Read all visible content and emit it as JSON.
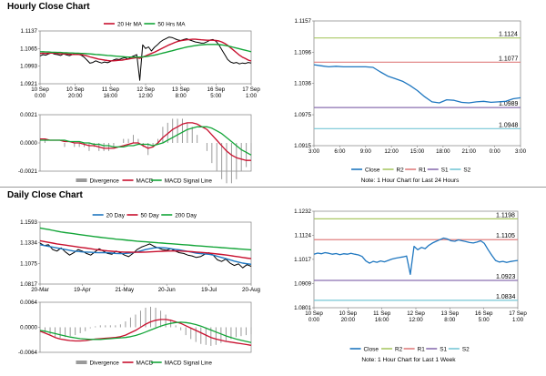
{
  "hourly_title": "Hourly Close Chart",
  "daily_title": "Daily Close Chart",
  "colors": {
    "close": "#1f77c0",
    "ma_short": "#c8102e",
    "ma_long": "#13a538",
    "r2": "#a9c865",
    "r1": "#e07f7f",
    "s1": "#8a6fb0",
    "s2": "#76c7d6",
    "divergence": "#9a9a9a",
    "frame": "#7f7f7f",
    "black": "#000000"
  },
  "chart_data": [
    {
      "id": "hourly-price",
      "type": "line",
      "legend": [
        "20 Hr MA",
        "50 Hrs MA"
      ],
      "yticks": [
        "1.1137",
        "1.1065",
        "1.0993",
        "1.0921"
      ],
      "ylim": [
        1.0921,
        1.1137
      ],
      "xticks": [
        "10 Sep\n0:00",
        "10 Sep\n20:00",
        "11 Sep\n16:00",
        "12 Sep\n12:00",
        "13 Sep\n8:00",
        "16 Sep\n5:00",
        "17 Sep\n1:00"
      ],
      "series": [
        {
          "name": "close",
          "values": [
            1.1035,
            1.104,
            1.1038,
            1.1044,
            1.1047,
            1.1042,
            1.104,
            1.1037,
            1.1043,
            1.1039,
            1.1036,
            1.104,
            1.1045,
            1.1042,
            1.1038,
            1.103,
            1.1018,
            1.1005,
            1.1008,
            1.1015,
            1.101,
            1.1006,
            1.101,
            1.1007,
            1.1012,
            1.1018,
            1.1022,
            1.102,
            1.1025,
            1.1028,
            1.1022,
            1.103,
            1.1035,
            1.104,
            1.0935,
            1.108,
            1.1065,
            1.1072,
            1.1055,
            1.107,
            1.108,
            1.1092,
            1.11,
            1.1106,
            1.1112,
            1.111,
            1.1105,
            1.11,
            1.1098,
            1.1102,
            1.1105,
            1.11,
            1.1096,
            1.1092,
            1.109,
            1.1087,
            1.1088,
            1.1093,
            1.11,
            1.1102,
            1.1095,
            1.108,
            1.106,
            1.104,
            1.102,
            1.101,
            1.1005,
            1.1008,
            1.1002,
            1.1006,
            1.1004,
            1.1008,
            1.1006
          ]
        },
        {
          "name": "20 Hr MA",
          "values": [
            1.1045,
            1.1046,
            1.1045,
            1.1046,
            1.1047,
            1.1046,
            1.1045,
            1.1044,
            1.1044,
            1.1043,
            1.1042,
            1.1041,
            1.1041,
            1.1041,
            1.104,
            1.1038,
            1.1035,
            1.1031,
            1.1028,
            1.1025,
            1.1022,
            1.102,
            1.1018,
            1.1016,
            1.1015,
            1.1015,
            1.1016,
            1.1017,
            1.1018,
            1.102,
            1.1022,
            1.1024,
            1.1026,
            1.1028,
            1.1025,
            1.103,
            1.1035,
            1.104,
            1.1045,
            1.105,
            1.1056,
            1.1062,
            1.1068,
            1.1074,
            1.108,
            1.1085,
            1.109,
            1.1094,
            1.1097,
            1.1099,
            1.1101,
            1.1102,
            1.1103,
            1.1103,
            1.1102,
            1.1101,
            1.11,
            1.1099,
            1.1099,
            1.1099,
            1.1098,
            1.1096,
            1.1092,
            1.1086,
            1.1078,
            1.1068,
            1.1058,
            1.1048,
            1.1038,
            1.103,
            1.1024,
            1.1018,
            1.1014
          ]
        },
        {
          "name": "50 Hrs MA",
          "values": [
            1.1052,
            1.1052,
            1.1051,
            1.1051,
            1.105,
            1.105,
            1.1049,
            1.1049,
            1.1048,
            1.1048,
            1.1047,
            1.1047,
            1.1046,
            1.1046,
            1.1045,
            1.1045,
            1.1044,
            1.1043,
            1.1042,
            1.1041,
            1.104,
            1.1039,
            1.1038,
            1.1037,
            1.1036,
            1.1035,
            1.1034,
            1.1033,
            1.1032,
            1.1031,
            1.103,
            1.103,
            1.103,
            1.103,
            1.103,
            1.1031,
            1.1032,
            1.1034,
            1.1036,
            1.1038,
            1.1041,
            1.1044,
            1.1047,
            1.105,
            1.1053,
            1.1056,
            1.1059,
            1.1062,
            1.1065,
            1.1068,
            1.1071,
            1.1073,
            1.1075,
            1.1077,
            1.1079,
            1.108,
            1.1081,
            1.1082,
            1.1082,
            1.1082,
            1.1082,
            1.1081,
            1.108,
            1.1078,
            1.1076,
            1.1073,
            1.107,
            1.1067,
            1.1064,
            1.1061,
            1.1058,
            1.1055,
            1.1052
          ]
        }
      ]
    },
    {
      "id": "hourly-macd",
      "type": "bar",
      "legend": [
        "Divergence",
        "MACD",
        "MACD Signal Line"
      ],
      "yticks": [
        "0.0021",
        "0.0000",
        "-0.0021"
      ],
      "ylim": [
        -0.0021,
        0.0021
      ],
      "series": [
        {
          "name": "MACD",
          "values": [
            0.0003,
            0.0003,
            0.0002,
            0.0002,
            0.0002,
            0.0001,
            0.0001,
            0.0,
            0.0,
            -0.0001,
            -0.0002,
            -0.0002,
            -0.0003,
            -0.0004,
            -0.0004,
            -0.0004,
            -0.0003,
            -0.0002,
            -0.0001,
            0.0,
            0.0,
            -0.0002,
            -0.0004,
            -0.0003,
            0.0,
            0.0004,
            0.0007,
            0.001,
            0.0012,
            0.0014,
            0.0015,
            0.0015,
            0.0014,
            0.0012,
            0.001,
            0.0006,
            0.0002,
            -0.0002,
            -0.0006,
            -0.0009,
            -0.0011,
            -0.0012,
            -0.0013,
            -0.0013
          ]
        },
        {
          "name": "MACD Signal Line",
          "values": [
            0.0002,
            0.0002,
            0.0002,
            0.0002,
            0.0002,
            0.0002,
            0.0001,
            0.0001,
            0.0001,
            0.0,
            0.0,
            -0.0001,
            -0.0001,
            -0.0002,
            -0.0002,
            -0.0003,
            -0.0003,
            -0.0003,
            -0.0002,
            -0.0002,
            -0.0001,
            -0.0001,
            -0.0001,
            -0.0002,
            -0.0001,
            0.0,
            0.0002,
            0.0004,
            0.0006,
            0.0008,
            0.001,
            0.0011,
            0.0012,
            0.0012,
            0.0012,
            0.0011,
            0.0009,
            0.0007,
            0.0004,
            0.0001,
            -0.0002,
            -0.0005,
            -0.0007,
            -0.0009
          ]
        }
      ]
    },
    {
      "id": "hourly-24h",
      "type": "line",
      "yticks": [
        "1.1157",
        "1.1096",
        "1.1036",
        "1.0975",
        "1.0915"
      ],
      "ylim": [
        1.0915,
        1.1157
      ],
      "xticks": [
        "3:00",
        "6:00",
        "9:00",
        "12:00",
        "15:00",
        "18:00",
        "21:00",
        "0:00",
        "3:00"
      ],
      "levels": [
        {
          "name": "R2",
          "value": 1.1124,
          "label": "1.1124"
        },
        {
          "name": "R1",
          "value": 1.1077,
          "label": "1.1077"
        },
        {
          "name": "S1",
          "value": 1.0989,
          "label": "1.0989"
        },
        {
          "name": "S2",
          "value": 1.0948,
          "label": "1.0948"
        }
      ],
      "series": [
        {
          "name": "Close",
          "values": [
            1.1072,
            1.107,
            1.1068,
            1.1069,
            1.1068,
            1.1068,
            1.1068,
            1.1068,
            1.1067,
            1.1058,
            1.105,
            1.1045,
            1.104,
            1.1032,
            1.1022,
            1.101,
            1.1,
            1.0998,
            1.1004,
            1.1003,
            1.0999,
            1.0998,
            1.1,
            1.1001,
            1.0999,
            1.1,
            1.1001,
            1.1006,
            1.1008
          ]
        }
      ],
      "legend": [
        "Close",
        "R2",
        "R1",
        "S1",
        "S2"
      ],
      "note": "Note: 1 Hour Chart for Last 24 Hours"
    },
    {
      "id": "daily-price",
      "type": "line",
      "legend": [
        "20 Day",
        "50 Day",
        "200 Day"
      ],
      "yticks": [
        "1.1593",
        "1.1334",
        "1.1075",
        "1.0817"
      ],
      "ylim": [
        1.0817,
        1.1593
      ],
      "xticks": [
        "20-Mar",
        "19-Apr",
        "21-May",
        "20-Jun",
        "19-Jul",
        "20-Aug"
      ],
      "series": [
        {
          "name": "close",
          "values": [
            1.133,
            1.13,
            1.131,
            1.125,
            1.123,
            1.127,
            1.122,
            1.118,
            1.121,
            1.125,
            1.123,
            1.12,
            1.118,
            1.122,
            1.126,
            1.123,
            1.12,
            1.119,
            1.123,
            1.121,
            1.118,
            1.116,
            1.12,
            1.125,
            1.128,
            1.13,
            1.132,
            1.129,
            1.127,
            1.125,
            1.124,
            1.126,
            1.123,
            1.121,
            1.12,
            1.118,
            1.117,
            1.115,
            1.116,
            1.119,
            1.121,
            1.118,
            1.112,
            1.11,
            1.113,
            1.108,
            1.105,
            1.107,
            1.102,
            1.106,
            1.104
          ]
        },
        {
          "name": "20 Day",
          "values": [
            1.131,
            1.13,
            1.129,
            1.128,
            1.127,
            1.126,
            1.125,
            1.124,
            1.123,
            1.1225,
            1.122,
            1.1218,
            1.1215,
            1.1212,
            1.121,
            1.1212,
            1.121,
            1.1205,
            1.12,
            1.1198,
            1.12,
            1.1205,
            1.121,
            1.122,
            1.1235,
            1.125,
            1.126,
            1.127,
            1.1275,
            1.1272,
            1.1268,
            1.126,
            1.1252,
            1.1245,
            1.1236,
            1.1225,
            1.1215,
            1.1205,
            1.1198,
            1.1195,
            1.119,
            1.118,
            1.1165,
            1.115,
            1.1135,
            1.112,
            1.1105,
            1.1092,
            1.108,
            1.1072,
            1.1065
          ]
        },
        {
          "name": "50 Day",
          "values": [
            1.136,
            1.135,
            1.134,
            1.133,
            1.132,
            1.1312,
            1.1305,
            1.1298,
            1.129,
            1.1282,
            1.1275,
            1.1268,
            1.126,
            1.1252,
            1.1245,
            1.1238,
            1.1232,
            1.1228,
            1.1224,
            1.122,
            1.1218,
            1.1216,
            1.1215,
            1.1215,
            1.1216,
            1.1218,
            1.122,
            1.1223,
            1.1226,
            1.1228,
            1.123,
            1.1231,
            1.1232,
            1.1231,
            1.1229,
            1.1226,
            1.1222,
            1.1218,
            1.1214,
            1.121,
            1.1205,
            1.12,
            1.1194,
            1.1188,
            1.1181,
            1.1174,
            1.1166,
            1.1158,
            1.115,
            1.1142,
            1.1135
          ]
        },
        {
          "name": "200 Day",
          "values": [
            1.152,
            1.151,
            1.15,
            1.149,
            1.148,
            1.147,
            1.1462,
            1.1455,
            1.1448,
            1.144,
            1.1432,
            1.1425,
            1.1418,
            1.1412,
            1.1405,
            1.1398,
            1.1392,
            1.1386,
            1.138,
            1.1375,
            1.137,
            1.1365,
            1.136,
            1.1355,
            1.135,
            1.1346,
            1.1342,
            1.1338,
            1.1334,
            1.133,
            1.1326,
            1.1322,
            1.1318,
            1.1314,
            1.131,
            1.1306,
            1.1302,
            1.1298,
            1.1294,
            1.129,
            1.1286,
            1.1282,
            1.1278,
            1.1274,
            1.127,
            1.1266,
            1.1262,
            1.1258,
            1.1254,
            1.125,
            1.1246
          ]
        }
      ]
    },
    {
      "id": "daily-macd",
      "type": "bar",
      "legend": [
        "Divergence",
        "MACD",
        "MACD Signal Line"
      ],
      "yticks": [
        "0.0064",
        "0.0000",
        "-0.0064"
      ],
      "ylim": [
        -0.0064,
        0.0064
      ],
      "series": [
        {
          "name": "MACD",
          "values": [
            -0.001,
            -0.0015,
            -0.002,
            -0.0026,
            -0.003,
            -0.0032,
            -0.0034,
            -0.0035,
            -0.0035,
            -0.0034,
            -0.0032,
            -0.003,
            -0.0029,
            -0.0028,
            -0.0027,
            -0.0026,
            -0.0024,
            -0.002,
            -0.0014,
            -0.0008,
            0.0,
            0.0008,
            0.0014,
            0.0018,
            0.002,
            0.002,
            0.0018,
            0.0014,
            0.001,
            0.0004,
            -0.0002,
            -0.0008,
            -0.0014,
            -0.002,
            -0.0026,
            -0.003,
            -0.0033,
            -0.0036,
            -0.0038,
            -0.004,
            -0.0042,
            -0.0044,
            -0.0046
          ]
        },
        {
          "name": "MACD Signal Line",
          "values": [
            -0.0008,
            -0.001,
            -0.0013,
            -0.0016,
            -0.0019,
            -0.0022,
            -0.0025,
            -0.0027,
            -0.0029,
            -0.003,
            -0.0031,
            -0.0031,
            -0.0031,
            -0.003,
            -0.0029,
            -0.0028,
            -0.0027,
            -0.0026,
            -0.0024,
            -0.0021,
            -0.0017,
            -0.0012,
            -0.0007,
            -0.0002,
            0.0003,
            0.0007,
            0.001,
            0.0012,
            0.0013,
            0.0012,
            0.001,
            0.0007,
            0.0003,
            -0.0002,
            -0.0007,
            -0.0012,
            -0.0017,
            -0.0022,
            -0.0026,
            -0.003,
            -0.0033,
            -0.0036,
            -0.0039
          ]
        }
      ]
    },
    {
      "id": "daily-week",
      "type": "line",
      "yticks": [
        "1.1232",
        "1.1124",
        "1.1017",
        "1.0909",
        "1.0801"
      ],
      "ylim": [
        1.0801,
        1.1232
      ],
      "xticks": [
        "10 Sep\n0:00",
        "10 Sep\n20:00",
        "11 Sep\n16:00",
        "12 Sep\n12:00",
        "13 Sep\n8:00",
        "16 Sep\n5:00",
        "17 Sep\n1:00"
      ],
      "levels": [
        {
          "name": "R2",
          "value": 1.1198,
          "label": "1.1198"
        },
        {
          "name": "R1",
          "value": 1.1105,
          "label": "1.1105"
        },
        {
          "name": "S1",
          "value": 1.0923,
          "label": "1.0923"
        },
        {
          "name": "S2",
          "value": 1.0834,
          "label": "1.0834"
        }
      ],
      "series": [
        {
          "name": "Close",
          "values": [
            1.104,
            1.1045,
            1.1042,
            1.1047,
            1.1044,
            1.104,
            1.1043,
            1.1038,
            1.1042,
            1.104,
            1.1044,
            1.104,
            1.1037,
            1.103,
            1.101,
            1.1,
            1.1008,
            1.1004,
            1.101,
            1.1006,
            1.1012,
            1.1018,
            1.1022,
            1.1025,
            1.1028,
            1.1032,
            1.095,
            1.1075,
            1.106,
            1.107,
            1.1065,
            1.108,
            1.109,
            1.1098,
            1.1105,
            1.1112,
            1.1108,
            1.11,
            1.1098,
            1.1104,
            1.11,
            1.1096,
            1.1092,
            1.109,
            1.1094,
            1.11,
            1.1088,
            1.106,
            1.1035,
            1.1012,
            1.1005,
            1.1008,
            1.1003,
            1.1007,
            1.101,
            1.1012
          ]
        }
      ],
      "legend": [
        "Close",
        "R2",
        "R1",
        "S1",
        "S2"
      ],
      "note": "Note: 1 Hour Chart for Last 1 Week"
    }
  ]
}
